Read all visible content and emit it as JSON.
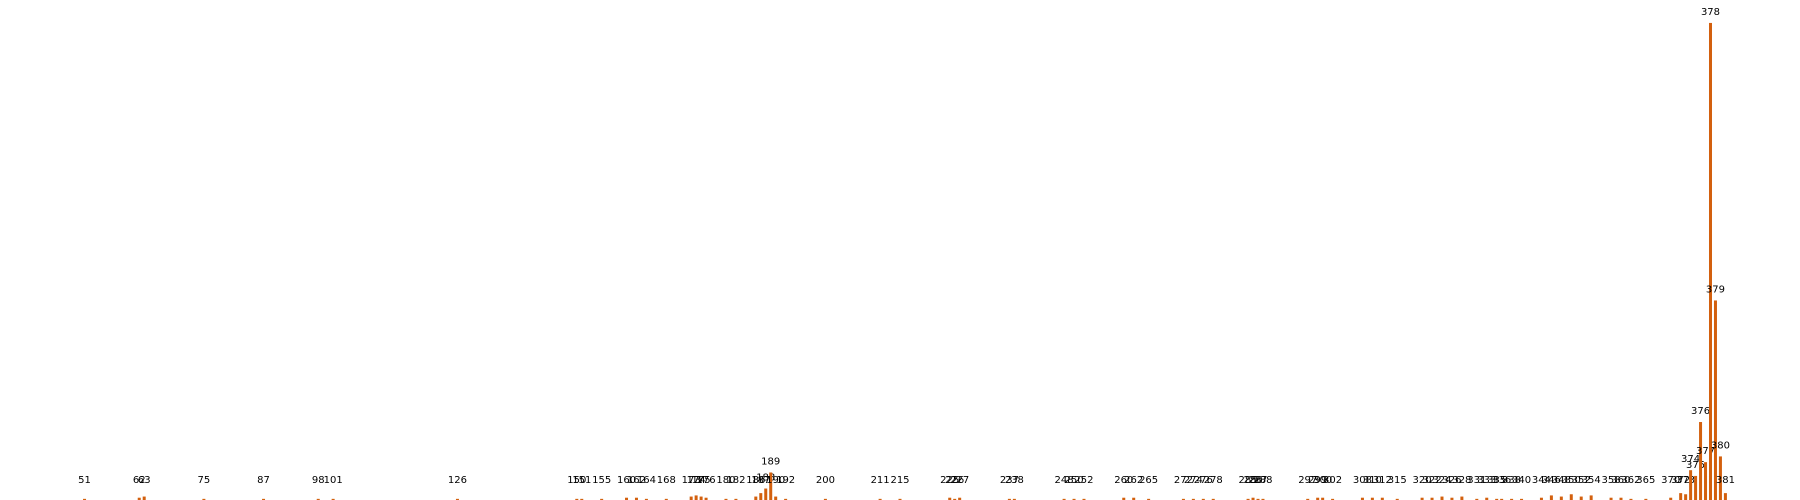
{
  "chart_data": {
    "type": "bar",
    "color": "#d3600e",
    "x": [
      51,
      62,
      63,
      75,
      87,
      98,
      101,
      126,
      150,
      151,
      155,
      160,
      162,
      164,
      168,
      173,
      174,
      175,
      176,
      180,
      182,
      186,
      187,
      188,
      189,
      190,
      192,
      200,
      211,
      215,
      225,
      226,
      227,
      237,
      238,
      248,
      250,
      252,
      260,
      262,
      265,
      272,
      274,
      276,
      278,
      285,
      286,
      287,
      288,
      297,
      299,
      300,
      302,
      308,
      310,
      312,
      315,
      320,
      322,
      324,
      326,
      328,
      331,
      333,
      335,
      336,
      338,
      340,
      344,
      346,
      348,
      350,
      352,
      354,
      358,
      360,
      362,
      365,
      370,
      372,
      373,
      374,
      375,
      376,
      377,
      378,
      379,
      380,
      381
    ],
    "values": [
      1,
      2,
      3,
      1,
      1,
      1,
      1,
      1,
      1,
      1,
      1,
      2,
      2,
      1,
      1,
      3,
      4,
      3,
      2,
      1,
      1,
      3,
      6,
      10,
      24,
      3,
      1,
      1,
      1,
      1,
      2,
      1,
      2,
      1,
      1,
      1,
      1,
      1,
      2,
      2,
      1,
      1,
      1,
      1,
      1,
      1,
      2,
      1,
      1,
      1,
      2,
      2,
      1,
      2,
      2,
      2,
      1,
      2,
      2,
      3,
      2,
      3,
      1,
      2,
      1,
      1,
      1,
      1,
      2,
      4,
      3,
      5,
      3,
      4,
      2,
      2,
      1,
      1,
      2,
      6,
      5,
      26,
      21,
      68,
      33,
      416,
      174,
      38,
      6
    ],
    "xlim": [
      34,
      396
    ],
    "ylim": [
      0,
      436
    ]
  }
}
